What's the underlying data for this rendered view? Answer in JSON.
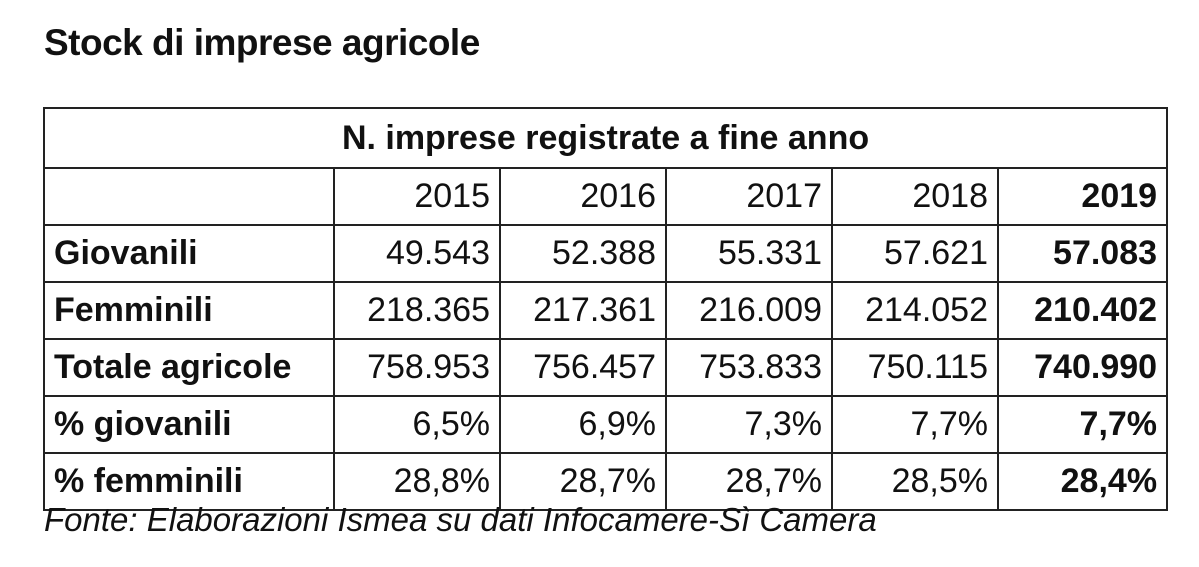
{
  "title": "Stock di imprese agricole",
  "table": {
    "caption": "N. imprese registrate a fine anno",
    "years": [
      "2015",
      "2016",
      "2017",
      "2018",
      "2019"
    ],
    "rows": [
      {
        "label": "Giovanili",
        "values": [
          "49.543",
          "52.388",
          "55.331",
          "57.621",
          "57.083"
        ]
      },
      {
        "label": "Femminili",
        "values": [
          "218.365",
          "217.361",
          "216.009",
          "214.052",
          "210.402"
        ]
      },
      {
        "label": "Totale agricole",
        "values": [
          "758.953",
          "756.457",
          "753.833",
          "750.115",
          "740.990"
        ]
      },
      {
        "label": "% giovanili",
        "values": [
          "6,5%",
          "6,9%",
          "7,3%",
          "7,7%",
          "7,7%"
        ]
      },
      {
        "label": "% femminili",
        "values": [
          "28,8%",
          "28,7%",
          "28,7%",
          "28,5%",
          "28,4%"
        ]
      }
    ]
  },
  "source": "Fonte: Elaborazioni Ismea su dati Infocamere-Sì Camera"
}
